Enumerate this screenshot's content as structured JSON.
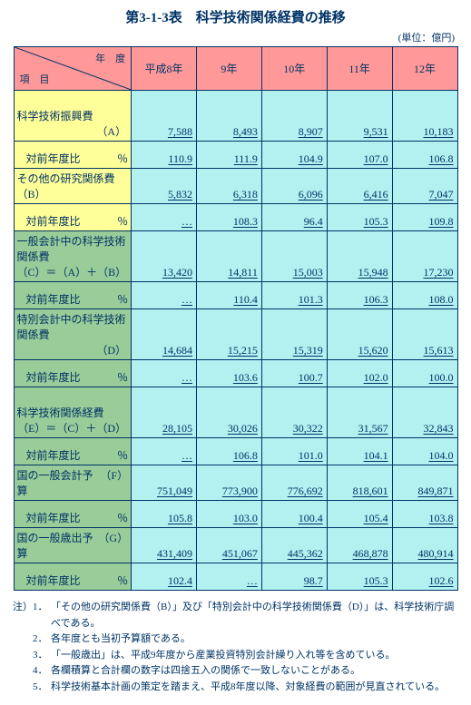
{
  "title": "第3-1-3表　科学技術関係経費の推移",
  "unit": "(単位：億円)",
  "corner": {
    "year": "年　度",
    "item": "項　目"
  },
  "headers": [
    "平成8年",
    "9年",
    "10年",
    "11年",
    "12年"
  ],
  "rows": [
    {
      "label_main": "科学技術振興費",
      "label_sub": "（A）",
      "cls": "yellow",
      "tall": true,
      "vals": [
        "7,588",
        "8,493",
        "8,907",
        "9,531",
        "10,183"
      ]
    },
    {
      "ratio": true,
      "cls": "yellow",
      "vals": [
        "110.9",
        "111.9",
        "104.9",
        "107.0",
        "106.8"
      ]
    },
    {
      "label_main": "その他の研究関係費（B）",
      "cls": "yellow",
      "vals": [
        "5,832",
        "6,318",
        "6,096",
        "6,416",
        "7,047"
      ]
    },
    {
      "ratio": true,
      "cls": "yellow",
      "vals": [
        "…",
        "108.3",
        "96.4",
        "105.3",
        "109.8"
      ]
    },
    {
      "label_main": "一般会計中の科学技術関係費",
      "label_sub": "（C）＝（A）＋（B）",
      "cls": "green",
      "tall": true,
      "vals": [
        "13,420",
        "14,811",
        "15,003",
        "15,948",
        "17,230"
      ]
    },
    {
      "ratio": true,
      "cls": "green",
      "vals": [
        "…",
        "110.4",
        "101.3",
        "106.3",
        "108.0"
      ]
    },
    {
      "label_main": "特別会計中の科学技術関係費",
      "label_sub": "（D）",
      "cls": "green",
      "tall": true,
      "vals": [
        "14,684",
        "15,215",
        "15,319",
        "15,620",
        "15,613"
      ]
    },
    {
      "ratio": true,
      "cls": "green",
      "vals": [
        "…",
        "103.6",
        "100.7",
        "102.0",
        "100.0"
      ]
    },
    {
      "label_main": "科学技術関係経費",
      "label_sub": "（E）＝（C）＋（D）",
      "cls": "green",
      "tall": true,
      "vals": [
        "28,105",
        "30,026",
        "30,322",
        "31,567",
        "32,843"
      ]
    },
    {
      "ratio": true,
      "cls": "green",
      "vals": [
        "…",
        "106.8",
        "101.0",
        "104.1",
        "104.0"
      ]
    },
    {
      "label_main": "国の一般会計予算",
      "label_sub": "（F）",
      "inline": true,
      "cls": "green",
      "vals": [
        "751,049",
        "773,900",
        "776,692",
        "818,601",
        "849,871"
      ]
    },
    {
      "ratio": true,
      "cls": "green",
      "vals": [
        "105.8",
        "103.0",
        "100.4",
        "105.4",
        "103.8"
      ]
    },
    {
      "label_main": "国の一般歳出予算",
      "label_sub": "（G）",
      "inline": true,
      "cls": "green",
      "vals": [
        "431,409",
        "451,067",
        "445,362",
        "468,878",
        "480,914"
      ]
    },
    {
      "ratio": true,
      "cls": "green",
      "vals": [
        "102.4",
        "…",
        "98.7",
        "105.3",
        "102.6"
      ]
    }
  ],
  "ratio_label": {
    "left": "対前年度比",
    "right": "％"
  },
  "notes_prefix": "注）",
  "notes": [
    "「その他の研究関係費（B）」及び「特別会計中の科学技術関係費（D）」は、科学技術庁調べである。",
    "各年度とも当初予算額である。",
    "「一般歳出」は、平成9年度から産業投資特別会計繰り入れ等を含めている。",
    "各欄積算と合計欄の数字は四捨五入の関係で一致しないことがある。",
    "科学技術基本計画の策定を踏まえ、平成8年度以降、対象経費の範囲が見直されている。"
  ],
  "colors": {
    "header_bg": "#ff9999",
    "yellow_bg": "#ffff99",
    "green_bg": "#99cc99",
    "cyan_bg": "#b3f0f0",
    "border": "#003366",
    "text": "#003366"
  }
}
